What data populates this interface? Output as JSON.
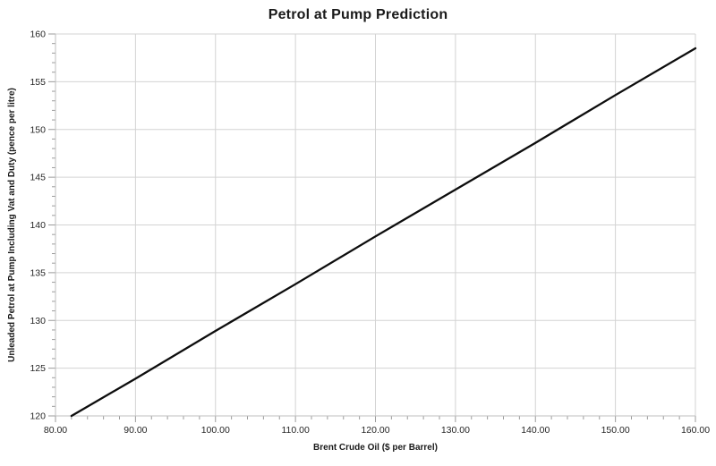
{
  "chart_data": {
    "type": "line",
    "title": "Petrol at Pump Prediction",
    "xlabel": "Brent Crude Oil ($ per Barrel)",
    "ylabel": "Unleaded Petrol at Pump Including Vat and Duty (pence per litre)",
    "xlim": [
      80,
      160
    ],
    "ylim": [
      120,
      160
    ],
    "x_major_step": 10,
    "x_minor_step": 2,
    "y_major_step": 5,
    "y_minor_step": 1,
    "x_tick_labels": [
      "80.00",
      "90.00",
      "100.00",
      "110.00",
      "120.00",
      "130.00",
      "140.00",
      "150.00",
      "160.00"
    ],
    "y_tick_labels": [
      "120",
      "125",
      "130",
      "135",
      "140",
      "145",
      "150",
      "155",
      "160"
    ],
    "grid": true,
    "legend_position": "none",
    "series": [
      {
        "color": "#0d0d0d",
        "line_width": 2.3,
        "points": [
          [
            82,
            120.0
          ],
          [
            90,
            123.9
          ],
          [
            100,
            128.9
          ],
          [
            110,
            133.8
          ],
          [
            120,
            138.8
          ],
          [
            130,
            143.7
          ],
          [
            140,
            148.6
          ],
          [
            150,
            153.6
          ],
          [
            160,
            158.5
          ]
        ]
      }
    ],
    "colors": {
      "background": "#ffffff",
      "gridline": "#d3d3d3",
      "plot_border": "#c9c9c9",
      "axis_line": "#bfbfbf",
      "tick": "#9b9b9b",
      "tick_label": "#262626",
      "title": "#1a1a1a"
    }
  }
}
